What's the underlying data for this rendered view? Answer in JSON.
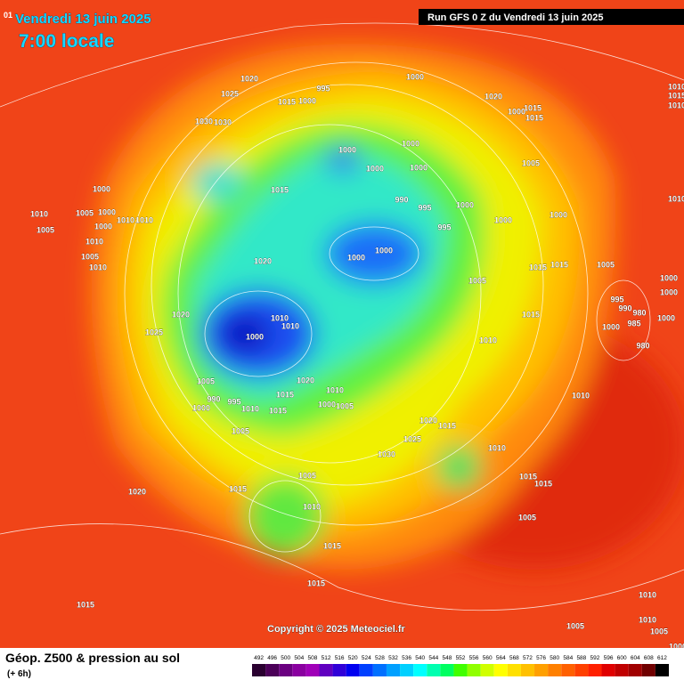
{
  "header": {
    "date": "Vendredi 13 juin 2025",
    "time": "7:00 locale",
    "run": "Run GFS 0 Z du Vendredi 13 juin 2025",
    "edge_label": "01"
  },
  "copyright": "Copyright © 2025 Meteociel.fr",
  "footer": {
    "title": "Géop. Z500 & pression au sol",
    "step": "(+ 6h)"
  },
  "legend": {
    "values": [
      492,
      496,
      500,
      504,
      508,
      512,
      516,
      520,
      524,
      528,
      532,
      536,
      540,
      544,
      548,
      552,
      556,
      560,
      564,
      568,
      572,
      576,
      580,
      584,
      588,
      592,
      596,
      600,
      604,
      608,
      612
    ],
    "colors": [
      "#2a0030",
      "#4b0058",
      "#6a0080",
      "#8a00a0",
      "#a000b8",
      "#6000c0",
      "#3000d8",
      "#0000f0",
      "#0040ff",
      "#0070ff",
      "#00a0ff",
      "#00d0ff",
      "#00ffff",
      "#00ffb0",
      "#00ff60",
      "#40ff00",
      "#90ff00",
      "#d0ff00",
      "#ffff00",
      "#ffe000",
      "#ffc000",
      "#ffa000",
      "#ff8000",
      "#ff6000",
      "#ff4000",
      "#ff2000",
      "#e00000",
      "#c00000",
      "#a00000",
      "#700000",
      "#000000"
    ]
  },
  "pressure_labels": [
    1020,
    1025,
    995,
    1000,
    1015,
    1000,
    1020,
    1015,
    1030,
    1030,
    1000,
    1000,
    1005,
    1000,
    1000,
    1000,
    1015,
    990,
    995,
    1000,
    1010,
    1005,
    1000,
    1000,
    1000,
    1005,
    1010,
    1010,
    1000,
    995,
    1010,
    1000,
    1000,
    1005,
    1020,
    1015,
    1015,
    1005,
    1010,
    1005,
    1000,
    1000,
    995,
    990,
    980,
    1000,
    1020,
    1010,
    1010,
    1015,
    985,
    1000,
    1025,
    1000,
    1010,
    980,
    1005,
    1020,
    1010,
    1015,
    1010,
    990,
    995,
    1000,
    1000,
    1005,
    1010,
    1015,
    1020,
    1015,
    1005,
    1025,
    1010,
    1030,
    1005,
    1015,
    1015,
    1020,
    1015,
    1010,
    1005,
    1015,
    1015,
    1015,
    1010,
    1005,
    1010,
    1005,
    1000,
    1010,
    1010,
    1015,
    1015,
    1010,
    1000
  ]
}
